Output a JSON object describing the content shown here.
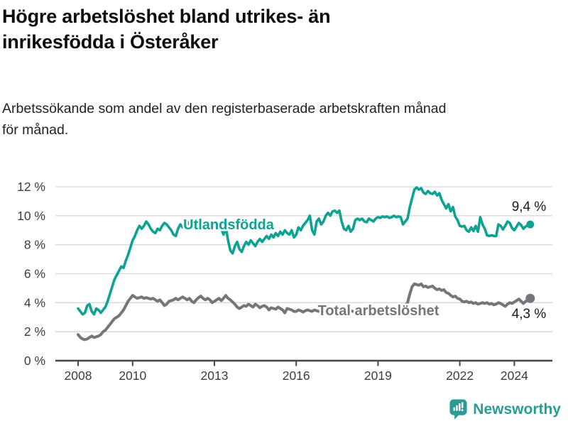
{
  "header": {
    "title": "Högre arbetslöshet bland utrikes- än\ninrikesfödda i Österåker",
    "subtitle": "Arbetssökande som andel av den registerbaserade arbetskraften månad\nför månad."
  },
  "chart_data": {
    "type": "line",
    "unit": "%",
    "x_start": "2008-01",
    "x_end": "2024-08",
    "x_interval": "monthly",
    "x_ticks": [
      2008,
      2010,
      2013,
      2016,
      2019,
      2022,
      2024
    ],
    "y_ticks": [
      0,
      2,
      4,
      6,
      8,
      10,
      12
    ],
    "ylim": [
      0,
      12
    ],
    "grid": true,
    "legend_position": "inline-labels",
    "series": [
      {
        "name": "Utlandsfödda",
        "color": "#0da291",
        "end_label": "9,4 %",
        "last_value": 9.4,
        "values": [
          3.6,
          3.4,
          3.2,
          3.3,
          3.8,
          3.9,
          3.4,
          3.2,
          3.6,
          3.5,
          3.3,
          3.5,
          3.7,
          4.1,
          4.6,
          5.1,
          5.6,
          5.9,
          6.2,
          6.5,
          6.4,
          6.9,
          7.3,
          7.8,
          8.3,
          8.6,
          9.0,
          9.3,
          9.1,
          9.3,
          9.6,
          9.4,
          9.1,
          8.9,
          8.8,
          9.1,
          9.0,
          9.3,
          9.5,
          9.4,
          9.2,
          9.0,
          8.7,
          8.6,
          9.1,
          9.4,
          9.2,
          9.5,
          9.6,
          9.4,
          9.6,
          9.3,
          9.5,
          9.4,
          9.6,
          9.4,
          9.2,
          9.4,
          9.6,
          9.4,
          9.5,
          9.6,
          9.4,
          9.1,
          8.7,
          9.2,
          8.3,
          7.6,
          7.4,
          7.9,
          8.2,
          7.7,
          7.5,
          7.9,
          8.2,
          8.0,
          8.3,
          8.1,
          7.9,
          8.2,
          8.4,
          8.2,
          8.4,
          8.6,
          8.4,
          8.7,
          8.5,
          8.8,
          8.6,
          8.9,
          8.7,
          9.0,
          8.8,
          8.7,
          9.0,
          8.5,
          8.7,
          9.2,
          9.0,
          9.3,
          9.5,
          9.7,
          10.0,
          9.0,
          8.7,
          9.6,
          9.8,
          9.4,
          9.6,
          10.0,
          10.2,
          10.0,
          10.3,
          10.35,
          10.2,
          10.35,
          9.6,
          9.1,
          9.0,
          9.3,
          8.9,
          9.1,
          9.7,
          9.8,
          9.7,
          9.8,
          9.6,
          9.55,
          9.8,
          9.7,
          9.6,
          9.8,
          9.9,
          9.85,
          9.95,
          9.9,
          9.95,
          9.85,
          9.9,
          10.0,
          9.9,
          9.95,
          9.9,
          9.4,
          9.6,
          9.8,
          10.6,
          11.2,
          11.8,
          11.95,
          11.8,
          11.9,
          11.6,
          11.5,
          11.7,
          11.55,
          11.5,
          11.65,
          11.4,
          11.55,
          11.1,
          10.8,
          10.5,
          10.8,
          10.3,
          10.6,
          9.95,
          9.7,
          9.3,
          9.25,
          9.3,
          9.0,
          8.9,
          9.2,
          8.95,
          9.3,
          8.9,
          9.9,
          9.4,
          9.1,
          8.65,
          8.6,
          8.65,
          8.6,
          8.6,
          9.4,
          9.3,
          9.05,
          9.3,
          9.6,
          9.5,
          9.15,
          9.0,
          9.25,
          9.5,
          9.35,
          9.1,
          9.25,
          9.35,
          9.4
        ]
      },
      {
        "name": "Total arbetslöshet",
        "color": "#75757a",
        "end_label": "4,3 %",
        "last_value": 4.3,
        "values": [
          1.8,
          1.6,
          1.5,
          1.45,
          1.5,
          1.6,
          1.7,
          1.6,
          1.65,
          1.7,
          1.8,
          2.0,
          2.1,
          2.3,
          2.5,
          2.7,
          2.9,
          3.0,
          3.1,
          3.3,
          3.5,
          3.8,
          4.1,
          4.3,
          4.5,
          4.4,
          4.3,
          4.35,
          4.4,
          4.3,
          4.35,
          4.3,
          4.25,
          4.3,
          4.2,
          4.1,
          4.2,
          4.0,
          3.8,
          3.9,
          4.1,
          4.15,
          4.2,
          4.3,
          4.2,
          4.3,
          4.4,
          4.3,
          4.2,
          4.3,
          4.1,
          4.0,
          4.2,
          4.35,
          4.45,
          4.3,
          4.2,
          4.3,
          4.2,
          4.0,
          4.1,
          4.2,
          4.3,
          4.15,
          4.3,
          4.5,
          4.3,
          4.2,
          4.05,
          3.9,
          3.7,
          3.6,
          3.7,
          3.8,
          3.75,
          3.9,
          3.8,
          3.7,
          3.9,
          3.8,
          3.65,
          3.75,
          3.8,
          3.7,
          3.5,
          3.65,
          3.6,
          3.55,
          3.7,
          3.6,
          3.5,
          3.3,
          3.6,
          3.55,
          3.5,
          3.4,
          3.4,
          3.5,
          3.45,
          3.35,
          3.45,
          3.5,
          3.45,
          3.4,
          3.5,
          3.45,
          3.4,
          3.45,
          3.5,
          3.45,
          3.4,
          3.45,
          3.5,
          3.55,
          3.45,
          3.4,
          3.45,
          3.5,
          3.45,
          3.4,
          3.45,
          3.4,
          3.35,
          3.4,
          3.45,
          3.4,
          3.35,
          3.3,
          3.4,
          3.45,
          3.4,
          3.45,
          3.5,
          3.45,
          3.5,
          3.55,
          3.5,
          3.45,
          3.5,
          3.55,
          3.6,
          3.5,
          3.55,
          3.7,
          3.8,
          4.0,
          4.6,
          5.1,
          5.3,
          5.25,
          5.2,
          5.3,
          5.1,
          5.15,
          5.05,
          5.1,
          5.15,
          5.0,
          4.9,
          4.95,
          4.85,
          4.9,
          4.7,
          4.65,
          4.5,
          4.4,
          4.45,
          4.3,
          4.25,
          4.1,
          4.05,
          4.1,
          4.0,
          4.05,
          3.95,
          4.0,
          3.9,
          3.95,
          4.0,
          3.95,
          4.0,
          3.9,
          3.95,
          3.85,
          3.9,
          4.0,
          3.95,
          3.85,
          3.75,
          3.9,
          4.0,
          3.95,
          4.05,
          4.15,
          4.25,
          4.1,
          3.95,
          4.1,
          4.2,
          4.3
        ]
      }
    ]
  },
  "footer": {
    "brand": "Newsworthy",
    "brand_color": "#2a9c94"
  }
}
